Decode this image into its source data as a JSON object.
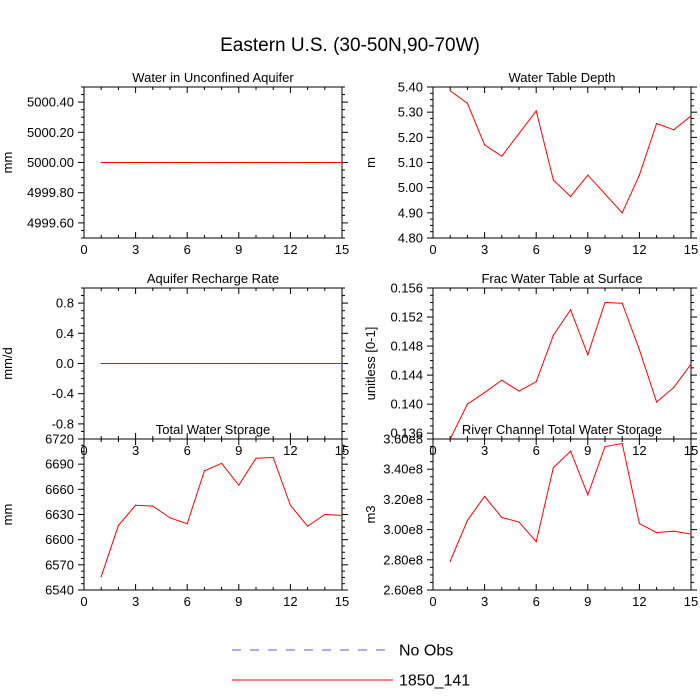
{
  "figure": {
    "title": "Eastern U.S. (30-50N,90-70W)"
  },
  "legend": {
    "entries": [
      {
        "label": "No Obs",
        "color": "#5a5acd",
        "style": "dashed"
      },
      {
        "label": "1850_141",
        "color": "#ff0000",
        "style": "solid"
      }
    ]
  },
  "chart_data": [
    {
      "type": "line",
      "title": "Water in Unconfined Aquifer",
      "xlabel": "",
      "ylabel": "mm",
      "xlim": [
        0,
        15
      ],
      "ylim": [
        4999.5,
        5000.5
      ],
      "xticks": [
        0,
        3,
        6,
        9,
        12,
        15
      ],
      "xtick_labels": [
        "0",
        "3",
        "6",
        "9",
        "12",
        "15"
      ],
      "yticks": [
        4999.6,
        4999.8,
        5000.0,
        5000.2,
        5000.4
      ],
      "ytick_labels": [
        "4999.60",
        "4999.80",
        "5000.00",
        "5000.20",
        "5000.40"
      ],
      "series": [
        {
          "name": "1850_141",
          "color": "#ff0000",
          "x": [
            1,
            2,
            3,
            4,
            5,
            6,
            7,
            8,
            9,
            10,
            11,
            12,
            13,
            14,
            15
          ],
          "values": [
            5000,
            5000,
            5000,
            5000,
            5000,
            5000,
            5000,
            5000,
            5000,
            5000,
            5000,
            5000,
            5000,
            5000,
            5000
          ]
        }
      ]
    },
    {
      "type": "line",
      "title": "Water Table Depth",
      "xlabel": "",
      "ylabel": "m",
      "xlim": [
        0,
        15
      ],
      "ylim": [
        4.8,
        5.4
      ],
      "xticks": [
        0,
        3,
        6,
        9,
        12,
        15
      ],
      "xtick_labels": [
        "0",
        "3",
        "6",
        "9",
        "12",
        "15"
      ],
      "yticks": [
        4.8,
        4.9,
        5.0,
        5.1,
        5.2,
        5.3,
        5.4
      ],
      "ytick_labels": [
        "4.80",
        "4.90",
        "5.00",
        "5.10",
        "5.20",
        "5.30",
        "5.40"
      ],
      "series": [
        {
          "name": "1850_141",
          "color": "#ff0000",
          "x": [
            1,
            2,
            3,
            4,
            5,
            6,
            7,
            8,
            9,
            10,
            11,
            12,
            13,
            14,
            15
          ],
          "values": [
            5.385,
            5.335,
            5.17,
            5.125,
            5.215,
            5.305,
            5.03,
            4.965,
            5.05,
            4.975,
            4.9,
            5.05,
            5.255,
            5.23,
            5.285
          ]
        }
      ]
    },
    {
      "type": "line",
      "title": "Aquifer Recharge Rate",
      "xlabel": "",
      "ylabel": "mm/d",
      "xlim": [
        0,
        15
      ],
      "ylim": [
        -1.0,
        1.0
      ],
      "xticks": [
        0,
        3,
        6,
        9,
        12,
        15
      ],
      "xtick_labels": [
        "0",
        "3",
        "6",
        "9",
        "12",
        "15"
      ],
      "yticks": [
        -0.8,
        -0.4,
        0.0,
        0.4,
        0.8
      ],
      "ytick_labels": [
        "-0.8",
        "-0.4",
        "0.0",
        "0.4",
        "0.8"
      ],
      "series": [
        {
          "name": "1850_141",
          "color": "#ff0000",
          "x": [
            1,
            2,
            3,
            4,
            5,
            6,
            7,
            8,
            9,
            10,
            11,
            12,
            13,
            14,
            15
          ],
          "values": [
            0,
            0,
            0,
            0,
            0,
            0,
            0,
            0,
            0,
            0,
            0,
            0,
            0,
            0,
            0
          ]
        }
      ]
    },
    {
      "type": "line",
      "title": "Frac Water Table at Surface",
      "xlabel": "",
      "ylabel": "unitless [0-1]",
      "xlim": [
        0,
        15
      ],
      "ylim": [
        0.1352,
        0.156
      ],
      "xticks": [
        0,
        3,
        6,
        9,
        12,
        15
      ],
      "xtick_labels": [
        "0",
        "3",
        "6",
        "9",
        "12",
        "15"
      ],
      "yticks": [
        0.136,
        0.14,
        0.144,
        0.148,
        0.152,
        0.156
      ],
      "ytick_labels": [
        "0.136",
        "0.140",
        "0.144",
        "0.148",
        "0.152",
        "0.156"
      ],
      "series": [
        {
          "name": "1850_141",
          "color": "#ff0000",
          "x": [
            1,
            2,
            3,
            4,
            5,
            6,
            7,
            8,
            9,
            10,
            11,
            12,
            13,
            14,
            15
          ],
          "values": [
            0.1352,
            0.14,
            0.1416,
            0.1433,
            0.1418,
            0.1431,
            0.1495,
            0.153,
            0.1468,
            0.154,
            0.1539,
            0.1475,
            0.1403,
            0.1423,
            0.1455
          ]
        }
      ]
    },
    {
      "type": "line",
      "title": "Total Water Storage",
      "xlabel": "",
      "ylabel": "mm",
      "xlim": [
        0,
        15
      ],
      "ylim": [
        6540,
        6720
      ],
      "xticks": [
        0,
        3,
        6,
        9,
        12,
        15
      ],
      "xtick_labels": [
        "0",
        "3",
        "6",
        "9",
        "12",
        "15"
      ],
      "yticks": [
        6540,
        6570,
        6600,
        6630,
        6660,
        6690,
        6720
      ],
      "ytick_labels": [
        "6540",
        "6570",
        "6600",
        "6630",
        "6660",
        "6690",
        "6720"
      ],
      "series": [
        {
          "name": "1850_141",
          "color": "#ff0000",
          "x": [
            1,
            2,
            3,
            4,
            5,
            6,
            7,
            8,
            9,
            10,
            11,
            12,
            13,
            14,
            15
          ],
          "values": [
            6556,
            6617,
            6641,
            6640,
            6626,
            6619,
            6682,
            6691,
            6665,
            6697,
            6698,
            6641,
            6616,
            6630,
            6629
          ]
        }
      ]
    },
    {
      "type": "line",
      "title": "River Channel Total Water Storage",
      "xlabel": "",
      "ylabel": "m3",
      "xlim": [
        0,
        15
      ],
      "ylim": [
        260000000,
        360000000
      ],
      "xticks": [
        0,
        3,
        6,
        9,
        12,
        15
      ],
      "xtick_labels": [
        "0",
        "3",
        "6",
        "9",
        "12",
        "15"
      ],
      "yticks": [
        260000000,
        280000000,
        300000000,
        320000000,
        340000000,
        360000000
      ],
      "ytick_labels": [
        "2.60e8",
        "2.80e8",
        "3.00e8",
        "3.20e8",
        "3.40e8",
        "3.60e8"
      ],
      "series": [
        {
          "name": "1850_141",
          "color": "#ff0000",
          "x": [
            1,
            2,
            3,
            4,
            5,
            6,
            7,
            8,
            9,
            10,
            11,
            12,
            13,
            14,
            15
          ],
          "values": [
            279000000,
            306000000,
            322000000,
            308000000,
            305000000,
            292000000,
            341000000,
            352000000,
            323000000,
            355000000,
            357000000,
            304000000,
            298000000,
            299000000,
            297000000
          ]
        }
      ]
    }
  ]
}
